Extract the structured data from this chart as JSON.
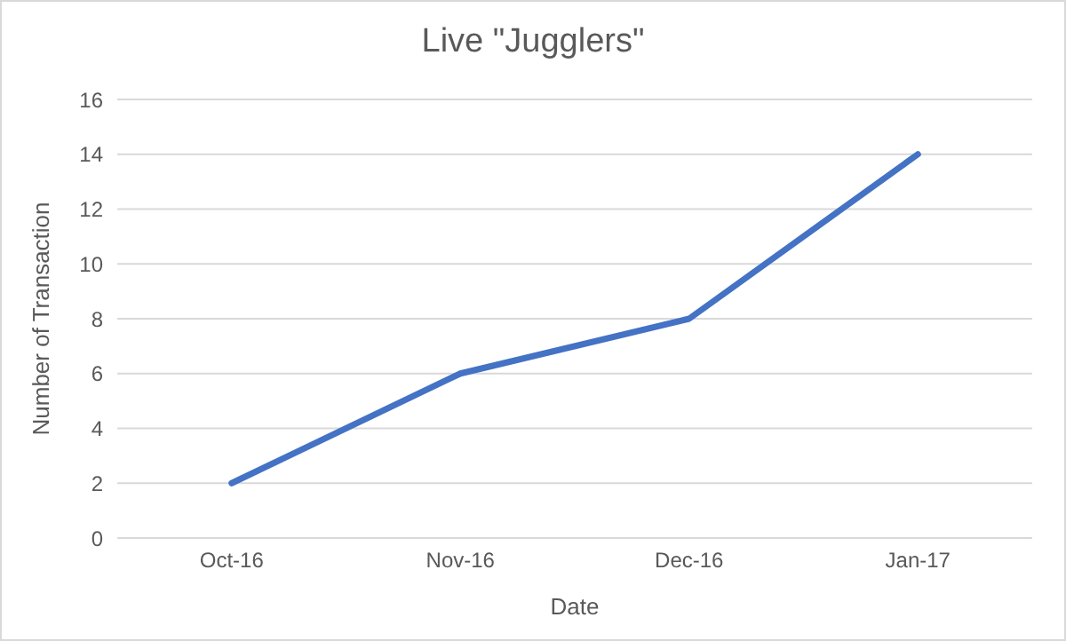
{
  "chart_data": {
    "type": "line",
    "title": "Live \"Jugglers\"",
    "xlabel": "Date",
    "ylabel": "Number  of Transaction",
    "categories": [
      "Oct-16",
      "Nov-16",
      "Dec-16",
      "Jan-17"
    ],
    "series": [
      {
        "color": "#4472c4",
        "values": [
          2,
          6,
          8,
          14
        ]
      }
    ],
    "ylim": [
      0,
      16
    ],
    "yticks": [
      0,
      2,
      4,
      6,
      8,
      10,
      12,
      14,
      16
    ],
    "grid": "y",
    "legend": false,
    "marker": "none",
    "line_style": "solid"
  }
}
